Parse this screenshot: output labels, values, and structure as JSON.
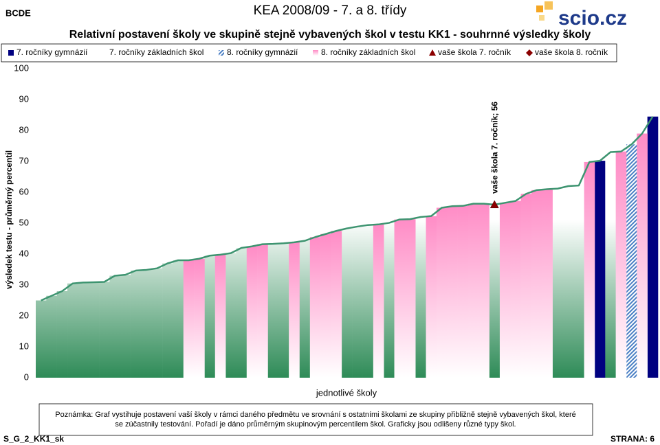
{
  "header": {
    "code": "BCDE",
    "title": "KEA 2008/09 - 7. a 8. třídy",
    "logo": "scio.cz"
  },
  "chart_data": {
    "type": "bar",
    "title": "Relativní postavení školy ve skupině stejně vybavených škol v testu KK1 - souhrnné výsledky školy",
    "y_label": "výsledek testu - průměrný percentil",
    "x_label": "jednotlivé školy",
    "ylim": [
      0,
      100
    ],
    "yticks": [
      0,
      10,
      20,
      30,
      40,
      50,
      60,
      70,
      80,
      90,
      100
    ],
    "line_color": "#3d9470",
    "categories": [
      null,
      null,
      null,
      null,
      null,
      null,
      null,
      null,
      null,
      null,
      null,
      null,
      null,
      null,
      null,
      null,
      null,
      null,
      null,
      null,
      null,
      null,
      null,
      null,
      null,
      null,
      null,
      null,
      null,
      null,
      null,
      null,
      null,
      null,
      null,
      null,
      null,
      null,
      null,
      null,
      null,
      null,
      null,
      null,
      null,
      null,
      null,
      null,
      null,
      null,
      null,
      null,
      null,
      null,
      null,
      null,
      null,
      null,
      null
    ],
    "series": [
      {
        "name": "7. ročníky gymnázií",
        "kind": "bar",
        "fill": "solid",
        "color": "#000080",
        "values": [
          null,
          null,
          null,
          null,
          null,
          null,
          null,
          null,
          null,
          null,
          null,
          null,
          null,
          null,
          null,
          null,
          null,
          null,
          null,
          null,
          null,
          null,
          null,
          null,
          null,
          null,
          null,
          null,
          null,
          null,
          null,
          null,
          null,
          null,
          null,
          null,
          null,
          null,
          null,
          null,
          null,
          null,
          null,
          null,
          null,
          null,
          null,
          null,
          null,
          null,
          null,
          null,
          null,
          70.2,
          null,
          null,
          null,
          null,
          84.5
        ]
      },
      {
        "name": "7. ročníky základních škol",
        "kind": "bar",
        "fill": "gradient-up",
        "color": "#2e8b57",
        "values": [
          25,
          26.5,
          28,
          30.5,
          30.8,
          30.9,
          31,
          33,
          33.3,
          34.7,
          34.9,
          35.4,
          37,
          38,
          null,
          null,
          39.5,
          null,
          40.3,
          42,
          null,
          null,
          43.3,
          43.5,
          null,
          44.3,
          null,
          null,
          null,
          48.3,
          48.9,
          49.4,
          null,
          50.1,
          null,
          null,
          52,
          null,
          null,
          null,
          null,
          null,
          null,
          56,
          null,
          null,
          null,
          null,
          null,
          61.2,
          62,
          62.2,
          null,
          null,
          73,
          null,
          null,
          null,
          null
        ]
      },
      {
        "name": "8. ročníky gymnázií",
        "kind": "bar",
        "fill": "hatch",
        "color": "#4a7fc4",
        "values": [
          null,
          null,
          null,
          null,
          null,
          null,
          null,
          null,
          null,
          null,
          null,
          null,
          null,
          null,
          null,
          null,
          null,
          null,
          null,
          null,
          null,
          null,
          null,
          null,
          null,
          null,
          null,
          null,
          null,
          null,
          null,
          null,
          null,
          null,
          null,
          null,
          null,
          null,
          null,
          null,
          null,
          null,
          null,
          null,
          null,
          null,
          null,
          null,
          null,
          null,
          null,
          null,
          null,
          null,
          null,
          null,
          75.5,
          null,
          null
        ]
      },
      {
        "name": "8. ročníky základních škol",
        "kind": "bar",
        "fill": "gradient-down",
        "color": "#ff8cc6",
        "values": [
          null,
          null,
          null,
          null,
          null,
          null,
          null,
          null,
          null,
          null,
          null,
          null,
          null,
          null,
          38,
          38.5,
          null,
          39.8,
          null,
          null,
          42.5,
          43.2,
          null,
          null,
          43.8,
          null,
          45.5,
          46.5,
          47.5,
          null,
          null,
          null,
          49.6,
          null,
          51.2,
          51.3,
          null,
          52.3,
          55,
          55.5,
          55.6,
          56.3,
          56.3,
          null,
          56.6,
          57.2,
          59.5,
          60.7,
          61,
          null,
          null,
          null,
          69.8,
          null,
          null,
          73.2,
          null,
          79,
          null
        ]
      },
      {
        "name": "vaše škola 7. ročník",
        "kind": "marker",
        "marker": "triangle",
        "color": "#8b0000",
        "values": [
          null,
          null,
          null,
          null,
          null,
          null,
          null,
          null,
          null,
          null,
          null,
          null,
          null,
          null,
          null,
          null,
          null,
          null,
          null,
          null,
          null,
          null,
          null,
          null,
          null,
          null,
          null,
          null,
          null,
          null,
          null,
          null,
          null,
          null,
          null,
          null,
          null,
          null,
          null,
          null,
          null,
          null,
          null,
          56,
          null,
          null,
          null,
          null,
          null,
          null,
          null,
          null,
          null,
          null,
          null,
          null,
          null,
          null,
          null
        ],
        "value_labels": [
          null,
          null,
          null,
          null,
          null,
          null,
          null,
          null,
          null,
          null,
          null,
          null,
          null,
          null,
          null,
          null,
          null,
          null,
          null,
          null,
          null,
          null,
          null,
          null,
          null,
          null,
          null,
          null,
          null,
          null,
          null,
          null,
          null,
          null,
          null,
          null,
          null,
          null,
          null,
          null,
          null,
          null,
          null,
          "vaše škola 7. ročník; 56",
          null,
          null,
          null,
          null,
          null,
          null,
          null,
          null,
          null,
          null,
          null,
          null,
          null,
          null,
          null
        ]
      },
      {
        "name": "vaše škola 8. ročník",
        "kind": "marker",
        "marker": "diamond",
        "color": "#8b0000",
        "values": [
          null,
          null,
          null,
          null,
          null,
          null,
          null,
          null,
          null,
          null,
          null,
          null,
          null,
          null,
          null,
          null,
          null,
          null,
          null,
          null,
          null,
          null,
          null,
          null,
          null,
          null,
          null,
          null,
          null,
          null,
          null,
          null,
          null,
          null,
          null,
          null,
          null,
          null,
          null,
          null,
          null,
          null,
          null,
          null,
          null,
          null,
          null,
          null,
          null,
          null,
          null,
          null,
          null,
          null,
          null,
          null,
          null,
          null,
          null
        ]
      }
    ]
  },
  "note": [
    "Poznámka: Graf vystihuje postavení vaší školy v rámci daného předmětu ve srovnání s ostatními školami ze skupiny přibližně stejně vybavených škol, které",
    "se zúčastnily testování. Pořadí je dáno průměrným skupinovým percentilem škol. Graficky jsou odlišeny různé typy škol."
  ],
  "footer": {
    "left": "S_G_2_KK1_sk",
    "right": "STRANA: 6"
  }
}
